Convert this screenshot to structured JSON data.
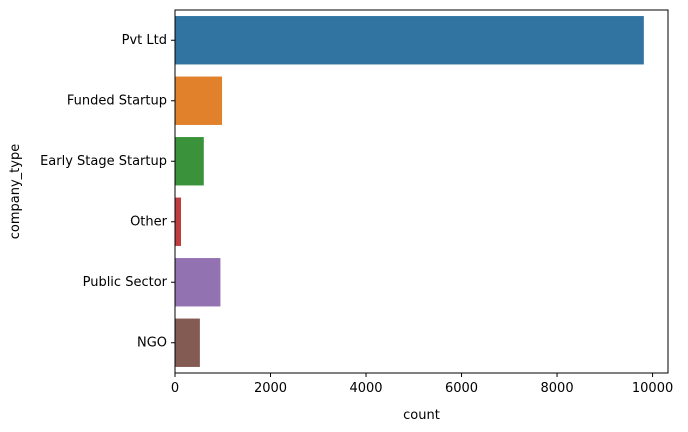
{
  "chart_data": {
    "type": "bar",
    "orientation": "horizontal",
    "categories": [
      "Pvt Ltd",
      "Funded Startup",
      "Early Stage Startup",
      "Other",
      "Public Sector",
      "NGO"
    ],
    "values": [
      9817,
      985,
      603,
      126,
      951,
      521
    ],
    "colors": [
      "#3274a1",
      "#e1812c",
      "#3a923a",
      "#c03d3e",
      "#9372b2",
      "#845b53"
    ],
    "xlabel": "count",
    "ylabel": "company_type",
    "xlim": [
      0,
      10323
    ],
    "xticks": [
      0,
      2000,
      4000,
      6000,
      8000,
      10000
    ],
    "xtick_labels": [
      "0",
      "2000",
      "4000",
      "6000",
      "8000",
      "10000"
    ],
    "grid": false
  }
}
